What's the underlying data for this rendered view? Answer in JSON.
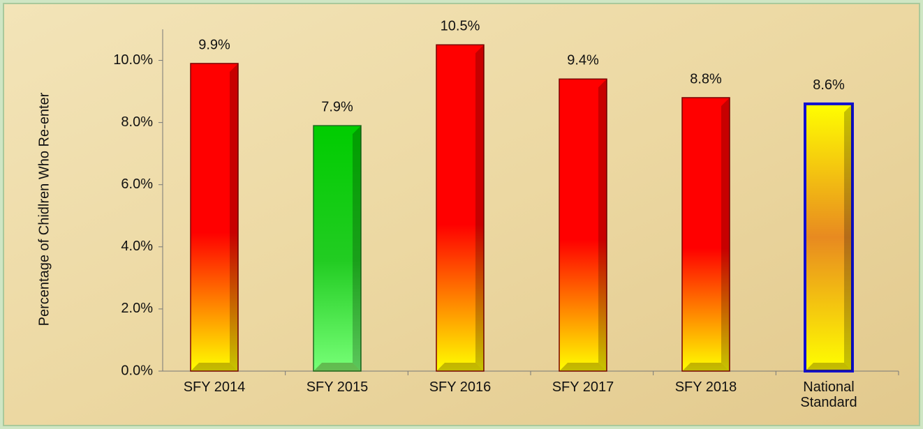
{
  "chart_data": {
    "type": "bar",
    "y_label": "Percentage of Chidlren Who Re-enter",
    "categories": [
      "SFY 2014",
      "SFY 2015",
      "SFY 2016",
      "SFY 2017",
      "SFY 2018",
      "National Standard"
    ],
    "values": [
      9.9,
      7.9,
      10.5,
      9.4,
      8.8,
      8.6
    ],
    "value_labels": [
      "9.9%",
      "7.9%",
      "10.5%",
      "9.4%",
      "8.8%",
      "8.6%"
    ],
    "colors": [
      "#ff0000",
      "#00cc00",
      "#ff0000",
      "#ff0000",
      "#ff0000",
      "#ffff00"
    ],
    "edgecolors": [
      "#7a0000",
      "#1f6b1f",
      "#7a0000",
      "#7a0000",
      "#7a0000",
      "#1010d0"
    ],
    "ylim": [
      0,
      11
    ],
    "yticks": [
      {
        "value": 0,
        "label": "0.0%"
      },
      {
        "value": 2,
        "label": "2.0%"
      },
      {
        "value": 4,
        "label": "4.0%"
      },
      {
        "value": 6,
        "label": "6.0%"
      },
      {
        "value": 8,
        "label": "8.0%"
      },
      {
        "value": 10,
        "label": "10.0%"
      }
    ]
  }
}
